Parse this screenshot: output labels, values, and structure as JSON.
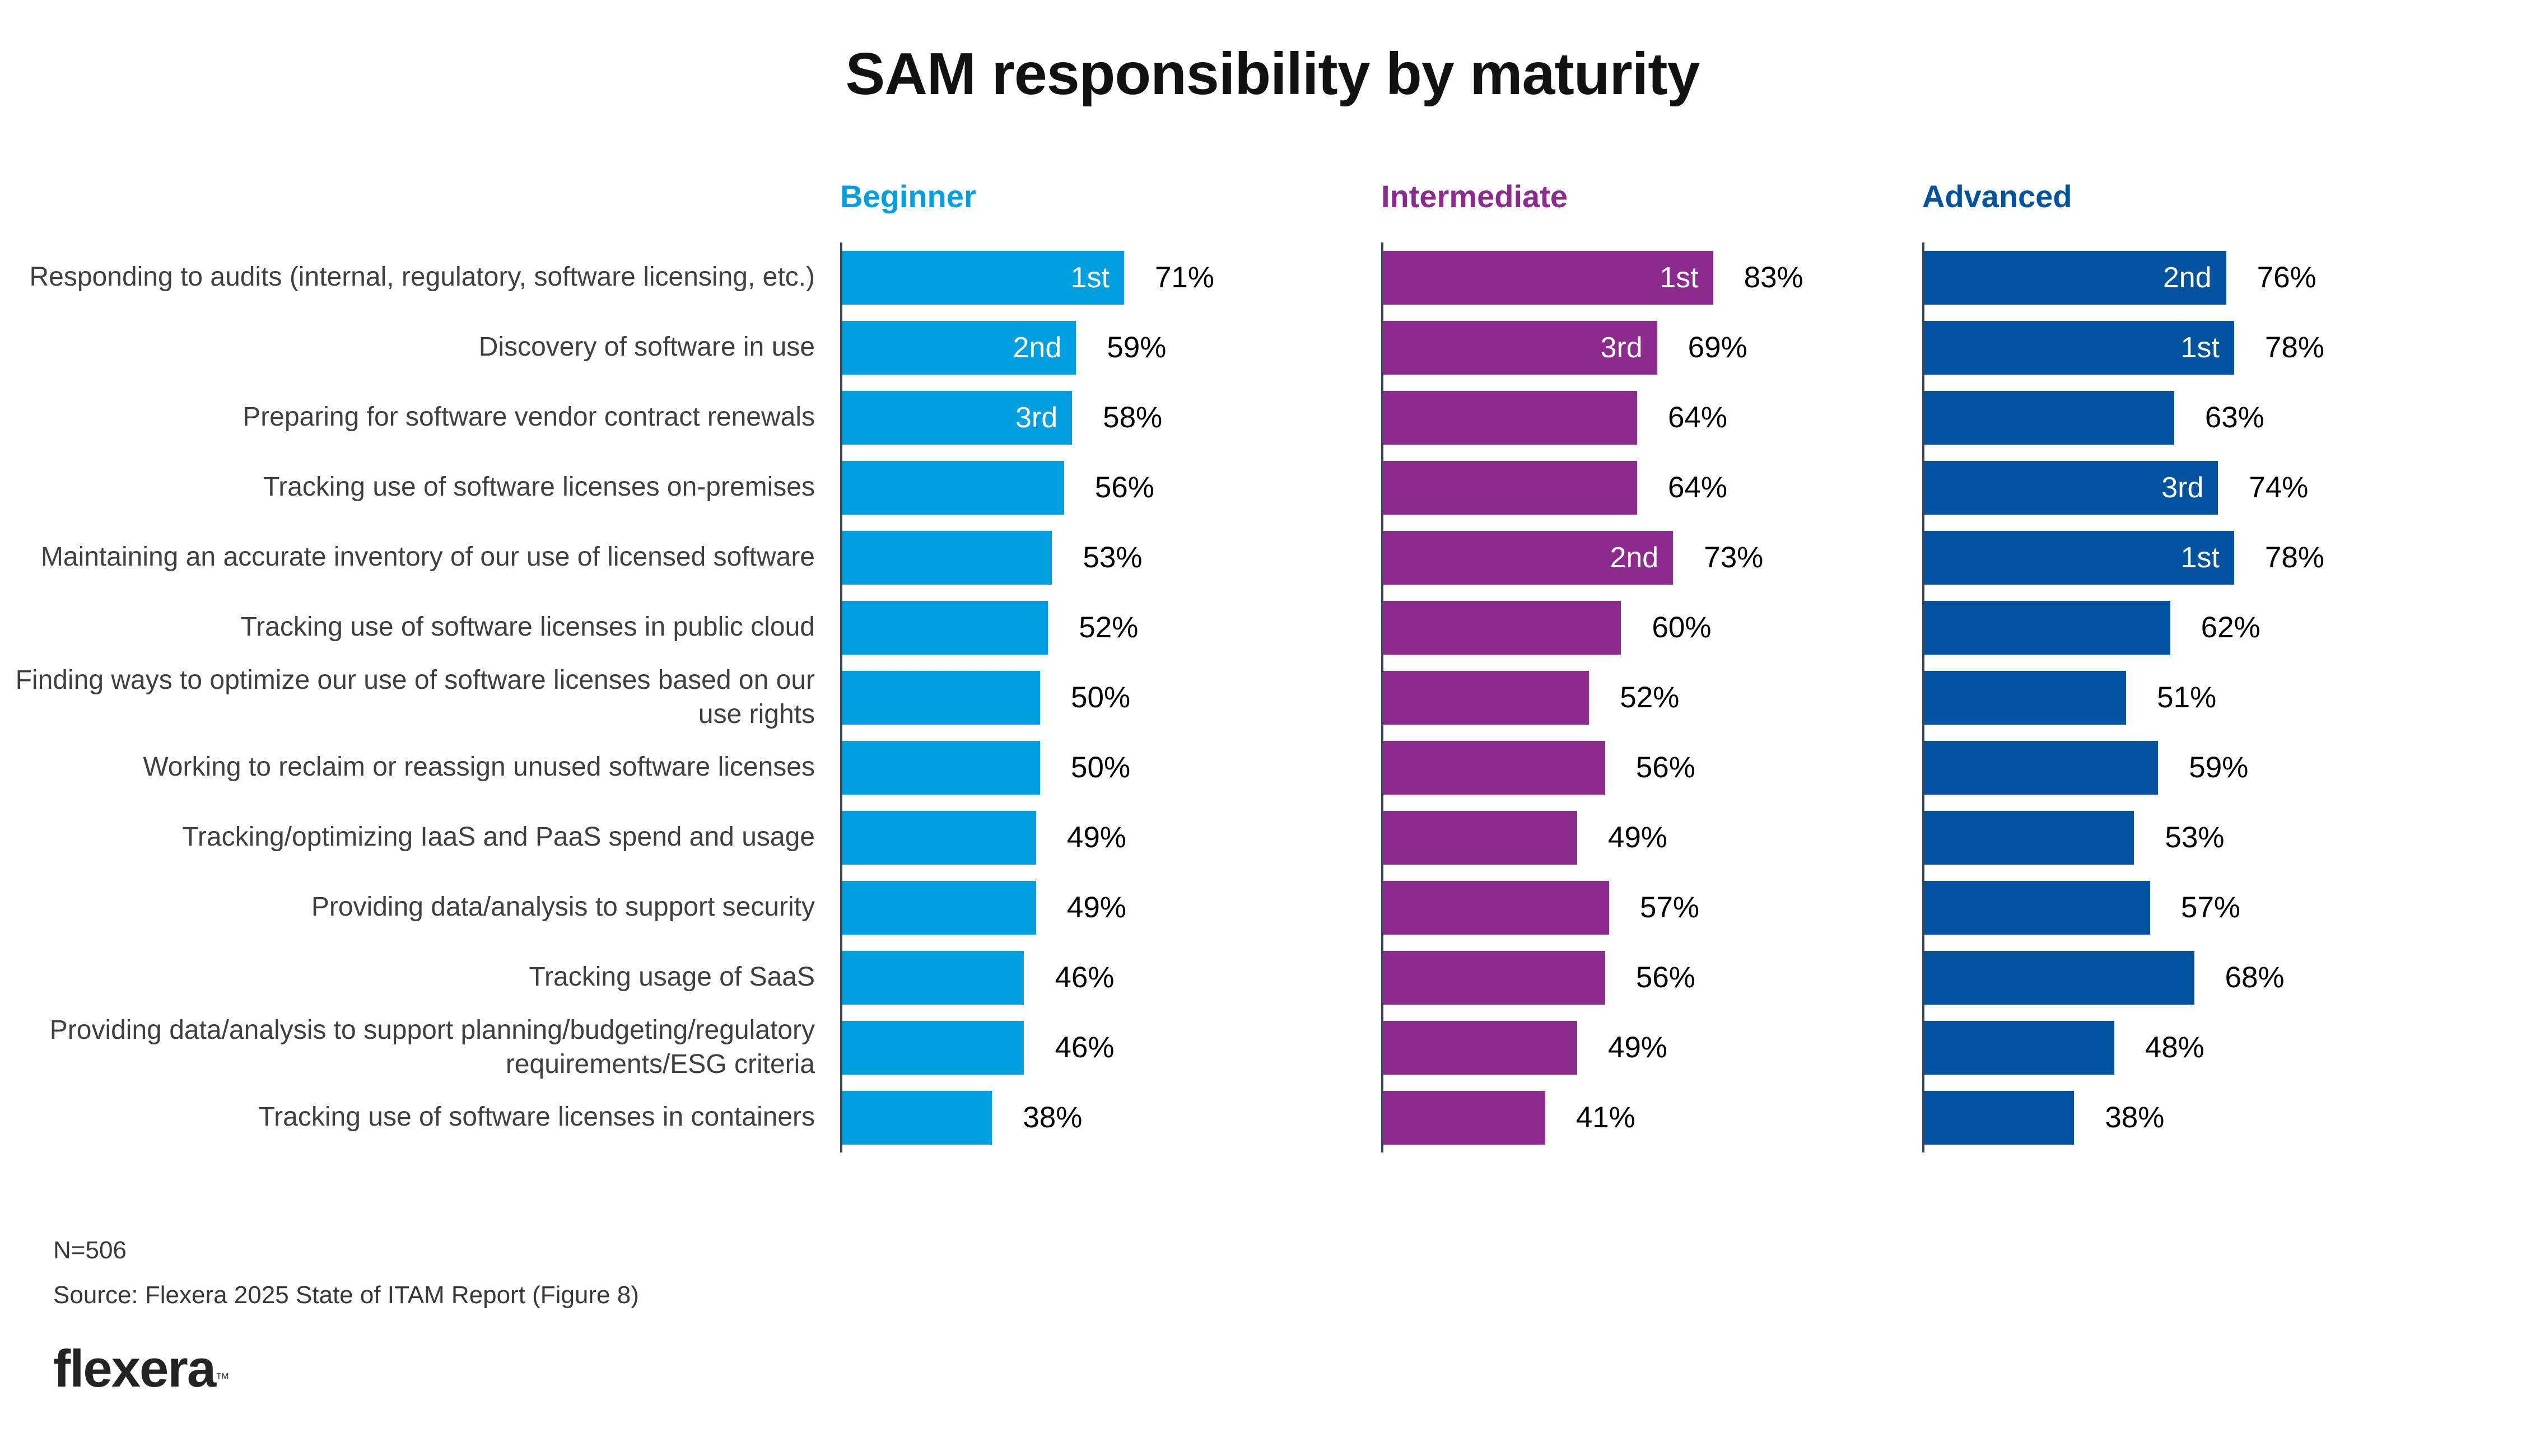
{
  "title": "SAM responsibility by maturity",
  "columns": [
    {
      "key": "beginner",
      "label": "Beginner",
      "color": "#029FE0"
    },
    {
      "key": "intermediate",
      "label": "Intermediate",
      "color": "#8D2A8D"
    },
    {
      "key": "advanced",
      "label": "Advanced",
      "color": "#02539F"
    }
  ],
  "chart_data": {
    "type": "bar",
    "orientation": "horizontal",
    "unit": "%",
    "xlim": [
      0,
      100
    ],
    "title": "SAM responsibility by maturity",
    "legend_position": "column-headers-top",
    "grid": false,
    "categories": [
      "Responding to audits (internal, regulatory, software licensing, etc.)",
      "Discovery of software in use",
      "Preparing for software vendor contract renewals",
      "Tracking use of software licenses on-premises",
      "Maintaining an accurate inventory of our use of licensed software",
      "Tracking use of software licenses in public cloud",
      "Finding ways to optimize our use of software licenses based on our use rights",
      "Working to reclaim or reassign unused software licenses",
      "Tracking/optimizing IaaS and PaaS spend and usage",
      "Providing data/analysis to support security",
      "Tracking usage of SaaS",
      "Providing data/analysis to support planning/budgeting/regulatory requirements/ESG criteria",
      "Tracking use of software licenses in containers"
    ],
    "series": [
      {
        "name": "Beginner",
        "color": "#029FE0",
        "values": [
          71,
          59,
          58,
          56,
          53,
          52,
          50,
          50,
          49,
          49,
          46,
          46,
          38
        ],
        "ranks": [
          "1st",
          "2nd",
          "3rd",
          "",
          "",
          "",
          "",
          "",
          "",
          "",
          "",
          "",
          ""
        ]
      },
      {
        "name": "Intermediate",
        "color": "#8D2A8D",
        "values": [
          83,
          69,
          64,
          64,
          73,
          60,
          52,
          56,
          49,
          57,
          56,
          49,
          41
        ],
        "ranks": [
          "1st",
          "3rd",
          "",
          "",
          "2nd",
          "",
          "",
          "",
          "",
          "",
          "",
          "",
          ""
        ]
      },
      {
        "name": "Advanced",
        "color": "#02539F",
        "values": [
          76,
          78,
          63,
          74,
          78,
          62,
          51,
          59,
          53,
          57,
          68,
          48,
          38
        ],
        "ranks": [
          "2nd",
          "1st",
          "",
          "3rd",
          "1st",
          "",
          "",
          "",
          "",
          "",
          "",
          "",
          ""
        ]
      }
    ]
  },
  "footer": {
    "n": "N=506",
    "source": "Source: Flexera 2025 State of ITAM Report (Figure 8)",
    "logo": "flexera",
    "logo_mark": "™"
  }
}
